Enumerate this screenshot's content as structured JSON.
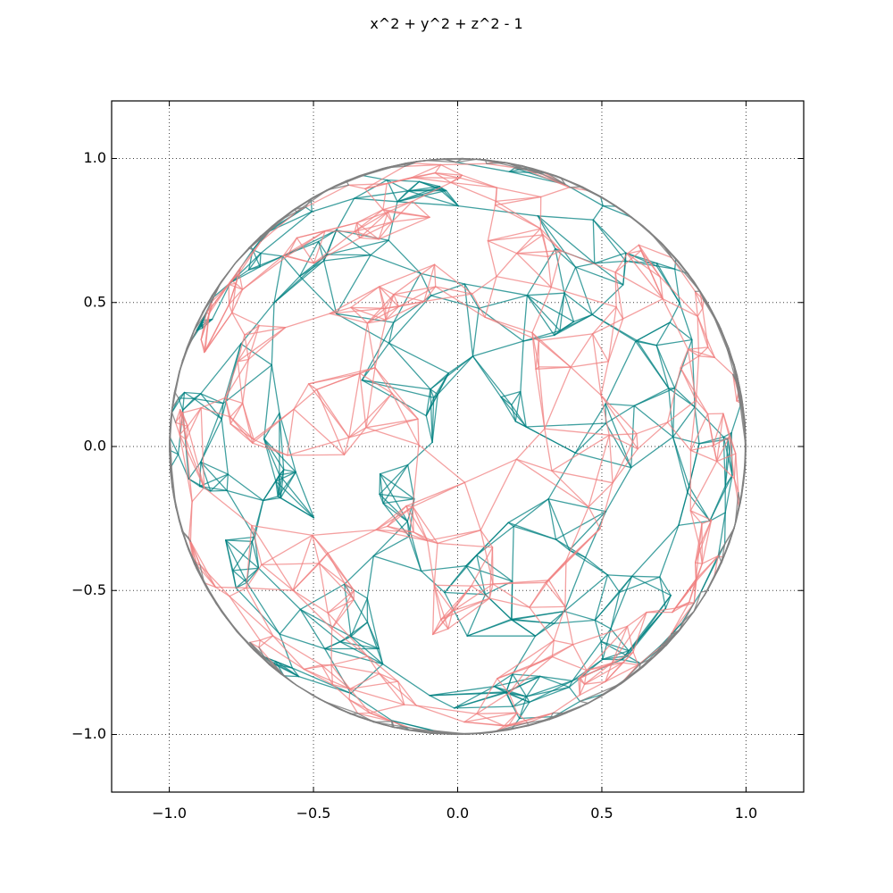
{
  "chart_data": {
    "type": "line",
    "title": "x^2 + y^2 + z^2 - 1",
    "xlabel": "",
    "ylabel": "",
    "xlim": [
      -1.2,
      1.2
    ],
    "ylim": [
      -1.2,
      1.2
    ],
    "x_ticks": [
      {
        "value": -1.0,
        "label": "−1.0"
      },
      {
        "value": -0.5,
        "label": "−0.5"
      },
      {
        "value": 0.0,
        "label": "0.0"
      },
      {
        "value": 0.5,
        "label": "0.5"
      },
      {
        "value": 1.0,
        "label": "1.0"
      }
    ],
    "y_ticks": [
      {
        "value": -1.0,
        "label": "−1.0"
      },
      {
        "value": -0.5,
        "label": "−0.5"
      },
      {
        "value": 0.0,
        "label": "0.0"
      },
      {
        "value": 0.5,
        "label": "0.5"
      },
      {
        "value": 1.0,
        "label": "1.0"
      }
    ],
    "grid": true,
    "surface": {
      "shape": "unit sphere wireframe (projected)",
      "radius": 1.0,
      "colors": {
        "front": "#f08080",
        "back": "#008080",
        "rim": "#808080"
      }
    }
  }
}
